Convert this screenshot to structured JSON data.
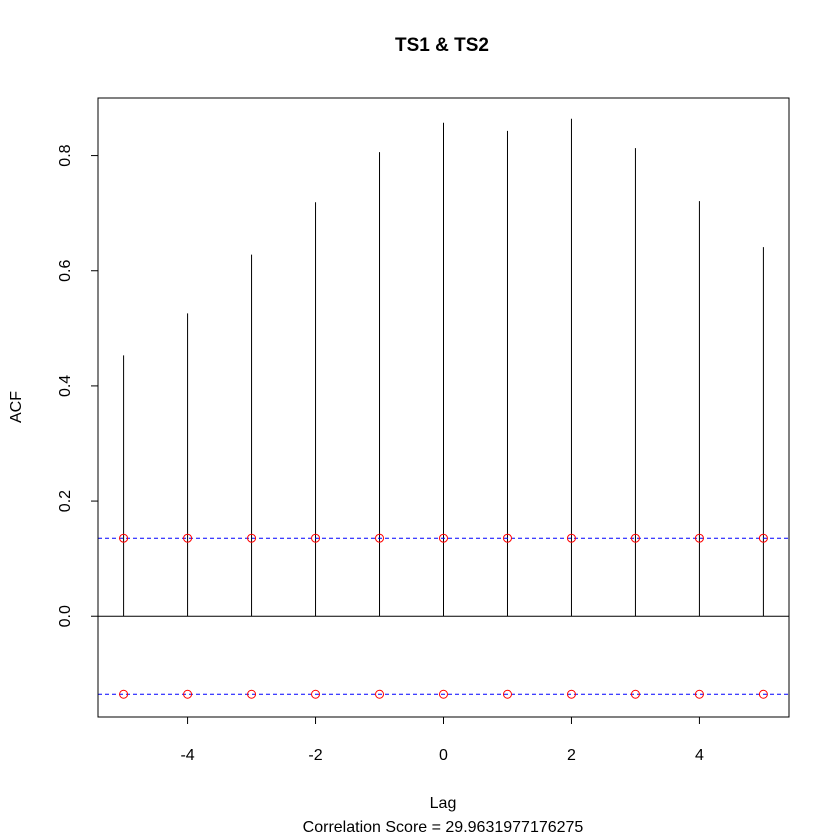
{
  "chart_data": {
    "type": "bar",
    "title": "TS1 & TS2",
    "xlabel": "Lag",
    "ylabel": "ACF",
    "subtitle": "Correlation Score = 29.9631977176275",
    "x": [
      -5,
      -4,
      -3,
      -2,
      -1,
      0,
      1,
      2,
      3,
      4,
      5
    ],
    "values": [
      0.453,
      0.526,
      0.628,
      0.719,
      0.806,
      0.857,
      0.843,
      0.864,
      0.813,
      0.721,
      0.641
    ],
    "xlim": [
      -5.4,
      5.4
    ],
    "ylim": [
      -0.175,
      0.9
    ],
    "xticks": [
      "-4",
      "-2",
      "0",
      "2",
      "4"
    ],
    "yticks": [
      "0.0",
      "0.2",
      "0.4",
      "0.6",
      "0.8"
    ],
    "confidence_upper": 0.1355,
    "confidence_lower": -0.1355,
    "confidence_color": "#0000ff",
    "marker_color": "#ff0000",
    "bar_color": "#000000",
    "grid": false
  }
}
